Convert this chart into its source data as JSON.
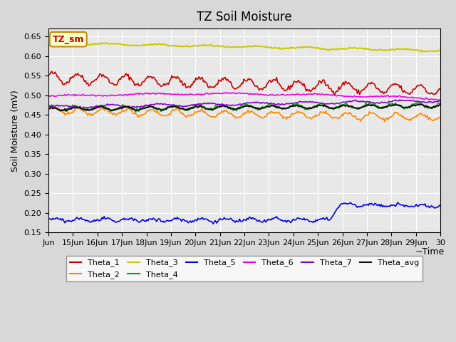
{
  "title": "TZ Soil Moisture",
  "xlabel": "~Time",
  "ylabel": "Soil Moisture (mV)",
  "ylim": [
    0.15,
    0.67
  ],
  "yticks": [
    0.15,
    0.2,
    0.25,
    0.3,
    0.35,
    0.4,
    0.45,
    0.5,
    0.55,
    0.6,
    0.65
  ],
  "xtick_labels": [
    "Jun",
    "15Jun",
    "16Jun",
    "17Jun",
    "18Jun",
    "19Jun",
    "20Jun",
    "21Jun",
    "22Jun",
    "23Jun",
    "24Jun",
    "25Jun",
    "26Jun",
    "27Jun",
    "28Jun",
    "29Jun",
    "30"
  ],
  "legend_label": "TZ_sm",
  "series_order": [
    "Theta_1",
    "Theta_2",
    "Theta_3",
    "Theta_4",
    "Theta_5",
    "Theta_6",
    "Theta_7",
    "Theta_avg"
  ],
  "series": {
    "Theta_1": {
      "color": "#cc0000",
      "lw": 1.2
    },
    "Theta_2": {
      "color": "#ff8800",
      "lw": 1.2
    },
    "Theta_3": {
      "color": "#cccc00",
      "lw": 1.5
    },
    "Theta_4": {
      "color": "#00aa00",
      "lw": 1.2
    },
    "Theta_5": {
      "color": "#0000ee",
      "lw": 1.2
    },
    "Theta_6": {
      "color": "#ee00ee",
      "lw": 1.2
    },
    "Theta_7": {
      "color": "#8800cc",
      "lw": 1.2
    },
    "Theta_avg": {
      "color": "#111111",
      "lw": 1.5
    }
  },
  "bg_color": "#e8e8e8",
  "grid_color": "#ffffff",
  "n_points": 360
}
